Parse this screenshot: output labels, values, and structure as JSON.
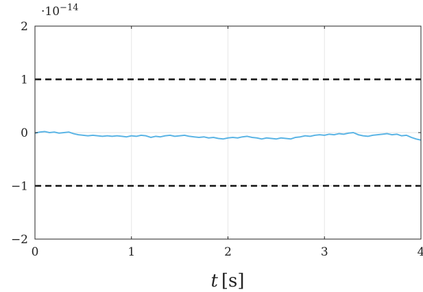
{
  "chart_data": {
    "type": "line",
    "title": "",
    "xlabel_italic": "t",
    "xlabel_unit": "[s]",
    "ylabel": "",
    "y_multiplier": "·10",
    "y_exponent": "−14",
    "xlim": [
      0,
      4
    ],
    "ylim": [
      -2,
      2
    ],
    "x_ticks": [
      0,
      1,
      2,
      3,
      4
    ],
    "x_tick_labels": [
      "0",
      "1",
      "2",
      "3",
      "4"
    ],
    "y_ticks": [
      2,
      1,
      0,
      -1,
      -2
    ],
    "y_tick_labels": [
      "2",
      "1",
      "0",
      "−1",
      "−2"
    ],
    "grid": true,
    "legend": "none",
    "colors": {
      "signal": "#5ab4e5",
      "bounds": "#111111"
    },
    "bounds": [
      1,
      -1
    ],
    "series": [
      {
        "x": [
          0,
          0.05,
          0.1,
          0.15,
          0.2,
          0.25,
          0.3,
          0.35,
          0.4,
          0.45,
          0.5,
          0.55,
          0.6,
          0.65,
          0.7,
          0.75,
          0.8,
          0.85,
          0.9,
          0.95,
          1.0,
          1.05,
          1.1,
          1.15,
          1.2,
          1.25,
          1.3,
          1.35,
          1.4,
          1.45,
          1.5,
          1.55,
          1.6,
          1.65,
          1.7,
          1.75,
          1.8,
          1.85,
          1.9,
          1.95,
          2.0,
          2.05,
          2.1,
          2.15,
          2.2,
          2.25,
          2.3,
          2.35,
          2.4,
          2.45,
          2.5,
          2.55,
          2.6,
          2.65,
          2.7,
          2.75,
          2.8,
          2.85,
          2.9,
          2.95,
          3.0,
          3.05,
          3.1,
          3.15,
          3.2,
          3.25,
          3.3,
          3.35,
          3.4,
          3.45,
          3.5,
          3.55,
          3.6,
          3.65,
          3.7,
          3.75,
          3.8,
          3.85,
          3.9,
          3.95,
          4.0
        ],
        "values": [
          -0.01,
          0.01,
          0.02,
          0.0,
          0.01,
          -0.01,
          0.0,
          0.01,
          -0.02,
          -0.04,
          -0.05,
          -0.06,
          -0.05,
          -0.06,
          -0.07,
          -0.06,
          -0.07,
          -0.06,
          -0.07,
          -0.08,
          -0.06,
          -0.07,
          -0.05,
          -0.06,
          -0.09,
          -0.07,
          -0.08,
          -0.06,
          -0.05,
          -0.07,
          -0.06,
          -0.05,
          -0.07,
          -0.08,
          -0.09,
          -0.08,
          -0.1,
          -0.09,
          -0.11,
          -0.12,
          -0.1,
          -0.09,
          -0.1,
          -0.08,
          -0.07,
          -0.09,
          -0.1,
          -0.12,
          -0.1,
          -0.11,
          -0.12,
          -0.1,
          -0.11,
          -0.12,
          -0.09,
          -0.08,
          -0.06,
          -0.07,
          -0.05,
          -0.04,
          -0.05,
          -0.03,
          -0.04,
          -0.02,
          -0.03,
          -0.01,
          0.0,
          -0.04,
          -0.06,
          -0.07,
          -0.05,
          -0.04,
          -0.03,
          -0.02,
          -0.04,
          -0.03,
          -0.06,
          -0.05,
          -0.09,
          -0.12,
          -0.14
        ]
      }
    ]
  }
}
